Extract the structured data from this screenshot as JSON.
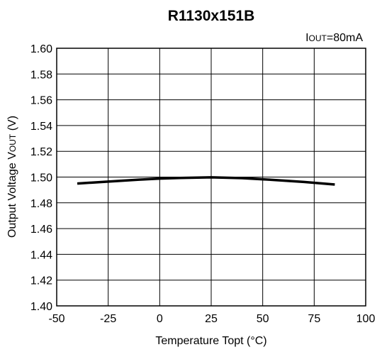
{
  "chart_data": {
    "type": "line",
    "title": "R1130x151B",
    "annotation": {
      "main": "I",
      "sub": "OUT",
      "rest": "=80mA"
    },
    "xlabel": "Temperature Topt (°C)",
    "ylabel": {
      "main": "Output Voltage V",
      "sub": "OUT",
      "rest": " (V)"
    },
    "xlim": [
      -50,
      100
    ],
    "ylim": [
      1.4,
      1.6
    ],
    "xticks": [
      -50,
      -25,
      0,
      25,
      50,
      75,
      100
    ],
    "xtick_labels": [
      "-50",
      "-25",
      "0",
      "25",
      "50",
      "75",
      "100"
    ],
    "yticks": [
      1.4,
      1.42,
      1.44,
      1.46,
      1.48,
      1.5,
      1.52,
      1.54,
      1.56,
      1.58,
      1.6
    ],
    "ytick_labels": [
      "1.40",
      "1.42",
      "1.44",
      "1.46",
      "1.48",
      "1.50",
      "1.52",
      "1.54",
      "1.56",
      "1.58",
      "1.60"
    ],
    "grid": true,
    "series": [
      {
        "x": [
          -40,
          -25,
          -10,
          0,
          10,
          25,
          40,
          55,
          70,
          85
        ],
        "y": [
          1.495,
          1.4965,
          1.498,
          1.4988,
          1.4993,
          1.4998,
          1.4992,
          1.4978,
          1.4962,
          1.4942
        ],
        "color": "#000000"
      }
    ]
  }
}
